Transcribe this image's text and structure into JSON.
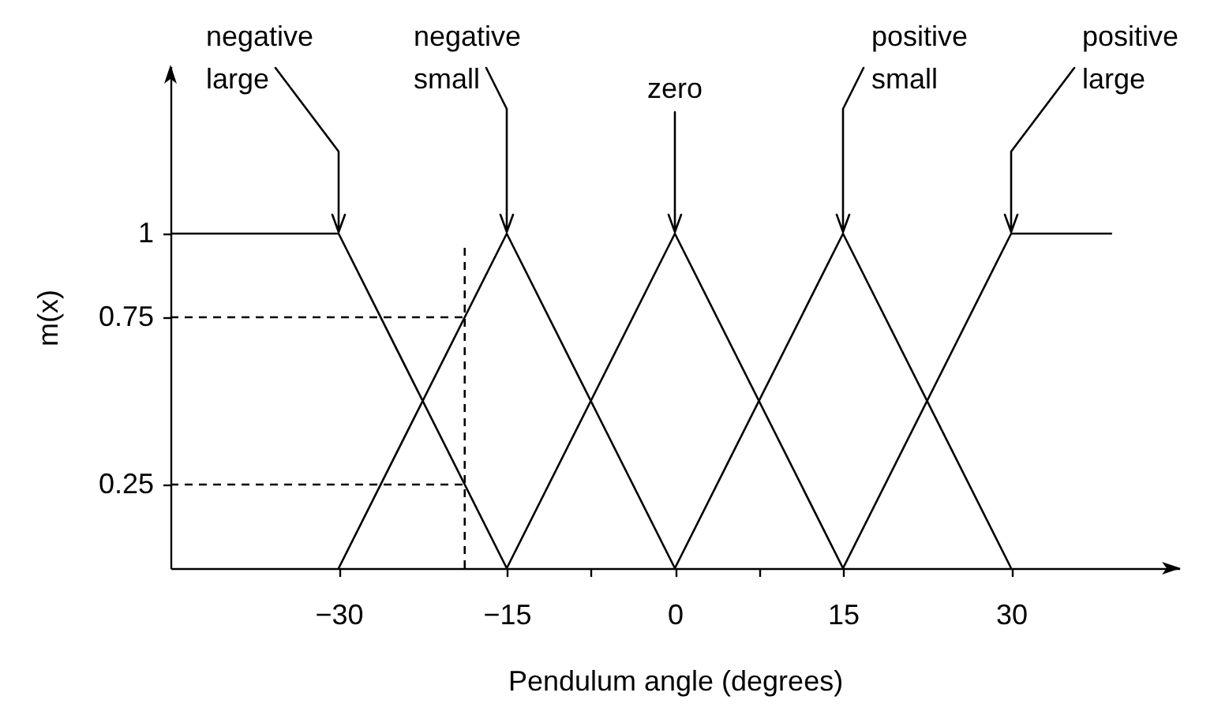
{
  "chart_data": {
    "type": "line",
    "xlabel": "Pendulum angle (degrees)",
    "ylabel": "m(x)",
    "line_style": "solid",
    "xlim": [
      -45,
      45
    ],
    "xticks": [
      {
        "value": -30,
        "label": "−30"
      },
      {
        "value": -15,
        "label": "−15"
      },
      {
        "value": -7.5,
        "label": null
      },
      0,
      {
        "value": 7.5,
        "label": null
      },
      15,
      30
    ],
    "ylim": [
      0,
      1.5
    ],
    "yticks": [
      0.25,
      0.75,
      1
    ],
    "annotations": [
      {
        "text": "negative large",
        "x": -30,
        "y": 1
      },
      {
        "text": "negative small",
        "x": -15,
        "y": 1
      },
      {
        "text": "zero",
        "x": 0,
        "y": 1
      },
      {
        "text": "positive small",
        "x": 15,
        "y": 1
      },
      {
        "text": "positive large",
        "x": 30,
        "y": 1
      }
    ],
    "series": [
      {
        "color": "#000000",
        "x": [
          -45,
          -30,
          -15
        ],
        "values": [
          1,
          1,
          0
        ]
      },
      {
        "color": "#000000",
        "x": [
          -30,
          -15,
          0
        ],
        "values": [
          0,
          1,
          0
        ]
      },
      {
        "color": "#000000",
        "x": [
          -15,
          0,
          15
        ],
        "values": [
          0,
          1,
          0
        ]
      },
      {
        "color": "#000000",
        "x": [
          0,
          15,
          30
        ],
        "values": [
          0,
          1,
          0
        ]
      },
      {
        "color": "#000000",
        "x": [
          15,
          30,
          39
        ],
        "values": [
          0,
          1,
          1
        ]
      },
      {
        "color": "#000000",
        "line_style": "dashed",
        "x": [
          -45,
          -18.75
        ],
        "values": [
          0.75,
          0.75
        ]
      },
      {
        "color": "#000000",
        "line_style": "dashed",
        "x": [
          -45,
          -18.75
        ],
        "values": [
          0.25,
          0.25
        ]
      },
      {
        "color": "#000000",
        "line_style": "dashed",
        "x": [
          -18.75,
          -18.75
        ],
        "values": [
          0,
          0.97
        ]
      }
    ]
  }
}
